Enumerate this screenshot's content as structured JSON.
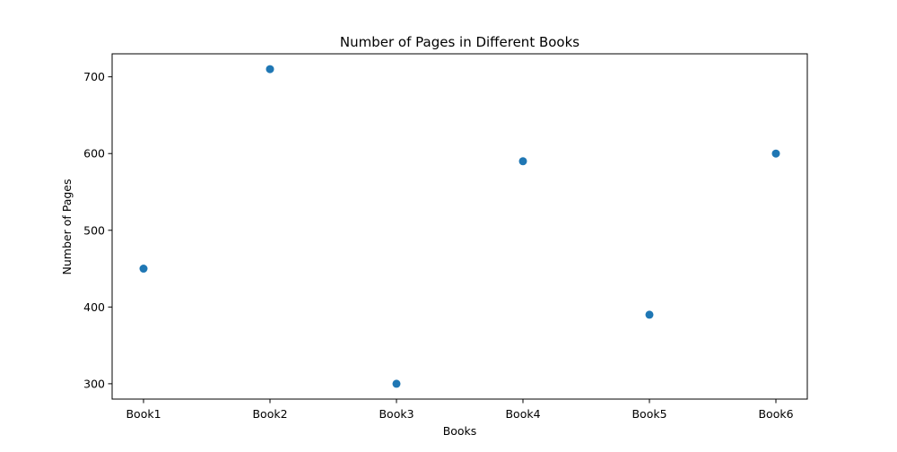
{
  "chart_data": {
    "type": "scatter",
    "title": "Number of Pages in Different Books",
    "xlabel": "Books",
    "ylabel": "Number of Pages",
    "categories": [
      "Book1",
      "Book2",
      "Book3",
      "Book4",
      "Book5",
      "Book6"
    ],
    "values": [
      450,
      710,
      300,
      590,
      390,
      600
    ],
    "ylim": [
      280,
      730
    ],
    "yticks": [
      300,
      400,
      500,
      600,
      700
    ],
    "grid": false,
    "marker_color": "#1f77b4"
  }
}
